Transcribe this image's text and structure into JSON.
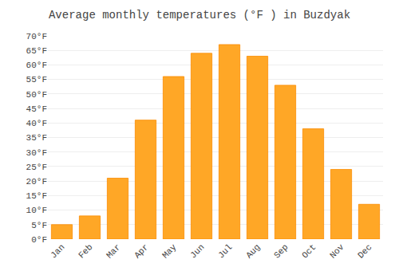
{
  "chart_data": {
    "type": "bar",
    "title": "Average monthly temperatures (°F ) in Buzdyak",
    "categories": [
      "Jan",
      "Feb",
      "Mar",
      "Apr",
      "May",
      "Jun",
      "Jul",
      "Aug",
      "Sep",
      "Oct",
      "Nov",
      "Dec"
    ],
    "values": [
      5,
      8,
      21,
      41,
      56,
      64,
      67,
      63,
      53,
      38,
      24,
      12
    ],
    "color": "#FFA726",
    "ylim": [
      0,
      70
    ],
    "yticks": [
      {
        "value": 0,
        "label": "0°F"
      },
      {
        "value": 5,
        "label": "5°F"
      },
      {
        "value": 10,
        "label": "10°F"
      },
      {
        "value": 15,
        "label": "15°F"
      },
      {
        "value": 20,
        "label": "20°F"
      },
      {
        "value": 25,
        "label": "25°F"
      },
      {
        "value": 30,
        "label": "30°F"
      },
      {
        "value": 35,
        "label": "35°F"
      },
      {
        "value": 40,
        "label": "40°F"
      },
      {
        "value": 45,
        "label": "45°F"
      },
      {
        "value": 50,
        "label": "50°F"
      },
      {
        "value": 55,
        "label": "55°F"
      },
      {
        "value": 60,
        "label": "60°F"
      },
      {
        "value": 65,
        "label": "65°F"
      },
      {
        "value": 70,
        "label": "70°F"
      }
    ],
    "grid": true
  }
}
